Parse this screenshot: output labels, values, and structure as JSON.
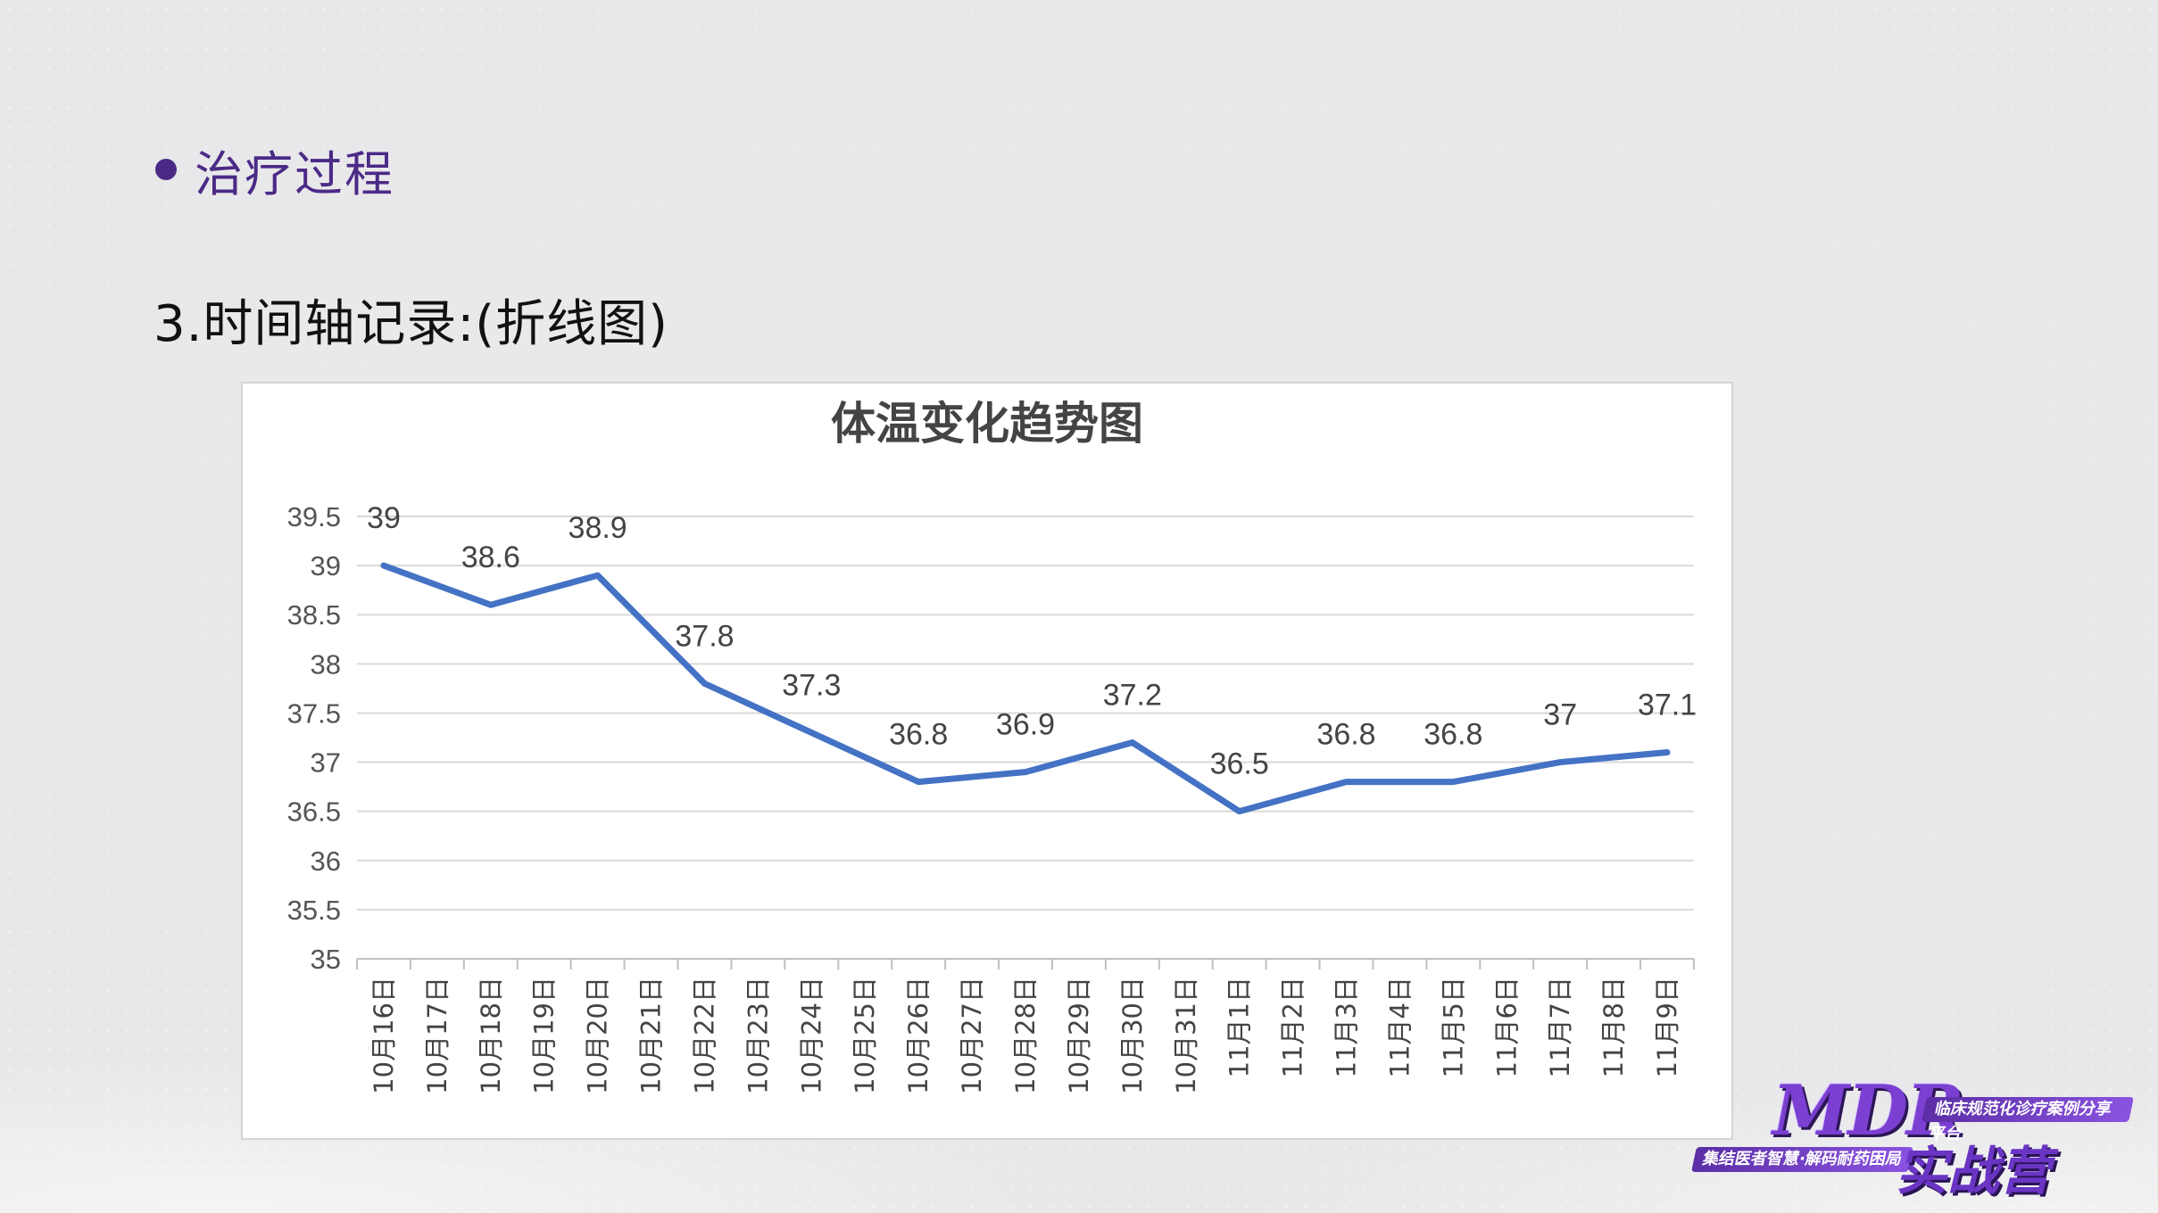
{
  "slide": {
    "bullet_heading": "治疗过程",
    "subheading": "3.时间轴记录:(折线图)"
  },
  "colors": {
    "bullet": "#4b2a86",
    "line": "#4472c4",
    "grid": "#d9d9d9"
  },
  "chart_data": {
    "type": "line",
    "title": "体温变化趋势图",
    "xlabel": "",
    "ylabel": "",
    "ylim": [
      35,
      39.5
    ],
    "yticks": [
      "35",
      "35.5",
      "36",
      "36.5",
      "37",
      "37.5",
      "38",
      "38.5",
      "39",
      "39.5"
    ],
    "grid": true,
    "legend": "none",
    "categories": [
      "10月16日",
      "10月17日",
      "10月18日",
      "10月19日",
      "10月20日",
      "10月21日",
      "10月22日",
      "10月23日",
      "10月24日",
      "10月25日",
      "10月26日",
      "10月27日",
      "10月28日",
      "10月29日",
      "10月30日",
      "10月31日",
      "11月1日",
      "11月2日",
      "11月3日",
      "11月4日",
      "11月5日",
      "11月6日",
      "11月7日",
      "11月8日",
      "11月9日"
    ],
    "points": [
      {
        "category": "10月16日",
        "value": 39,
        "label": "39"
      },
      {
        "category": "10月18日",
        "value": 38.6,
        "label": "38.6"
      },
      {
        "category": "10月20日",
        "value": 38.9,
        "label": "38.9"
      },
      {
        "category": "10月22日",
        "value": 37.8,
        "label": "37.8"
      },
      {
        "category": "10月24日",
        "value": 37.3,
        "label": "37.3"
      },
      {
        "category": "10月26日",
        "value": 36.8,
        "label": "36.8"
      },
      {
        "category": "10月28日",
        "value": 36.9,
        "label": "36.9"
      },
      {
        "category": "10月30日",
        "value": 37.2,
        "label": "37.2"
      },
      {
        "category": "11月1日",
        "value": 36.5,
        "label": "36.5"
      },
      {
        "category": "11月3日",
        "value": 36.8,
        "label": "36.8"
      },
      {
        "category": "11月5日",
        "value": 36.8,
        "label": "36.8"
      },
      {
        "category": "11月7日",
        "value": 37,
        "label": "37"
      },
      {
        "category": "11月9日",
        "value": 37.1,
        "label": "37.1"
      }
    ]
  },
  "logo": {
    "brand": "MDR",
    "tagline_top": "临床规范化诊疗案例分享平台",
    "tagline_bottom": "集结医者智慧·解码耐药困局",
    "name_cn": "实战营"
  }
}
